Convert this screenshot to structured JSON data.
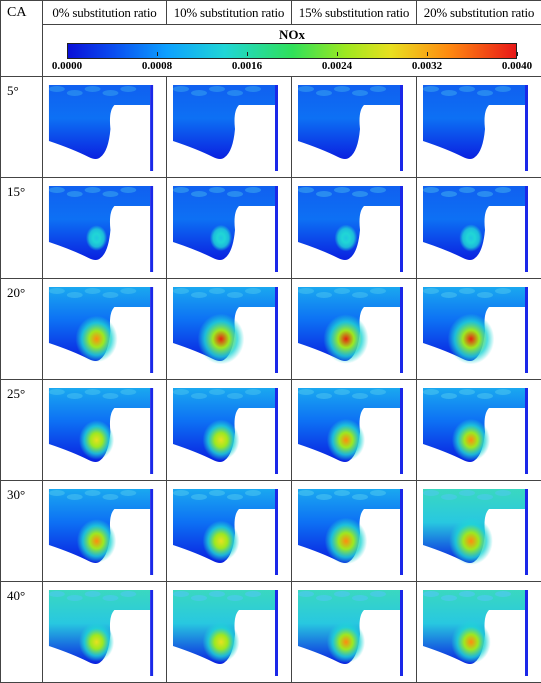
{
  "corner_label": "CA",
  "columns": [
    "0% substitution ratio",
    "10% substitution ratio",
    "15% substitution ratio",
    "20% substitution ratio"
  ],
  "legend": {
    "title": "NOx",
    "ticks": [
      "0.0000",
      "0.0008",
      "0.0016",
      "0.0024",
      "0.0032",
      "0.0040"
    ],
    "colors": [
      "#0a10d8",
      "#0da0ff",
      "#20d6d6",
      "#2fe05a",
      "#e8e020",
      "#ff8a10",
      "#e81818"
    ]
  },
  "rows": [
    {
      "ca": "5°",
      "hotspot": [
        0.0,
        0.0,
        0.0,
        0.0
      ],
      "spread": [
        0.15,
        0.18,
        0.2,
        0.22
      ]
    },
    {
      "ca": "15°",
      "hotspot": [
        0.05,
        0.08,
        0.1,
        0.12
      ],
      "spread": [
        0.25,
        0.28,
        0.3,
        0.32
      ]
    },
    {
      "ca": "20°",
      "hotspot": [
        0.8,
        0.95,
        0.9,
        0.95
      ],
      "spread": [
        0.4,
        0.45,
        0.45,
        0.5
      ]
    },
    {
      "ca": "25°",
      "hotspot": [
        0.55,
        0.6,
        0.65,
        0.65
      ],
      "spread": [
        0.45,
        0.4,
        0.5,
        0.55
      ]
    },
    {
      "ca": "30°",
      "hotspot": [
        0.7,
        0.6,
        0.8,
        0.85
      ],
      "spread": [
        0.5,
        0.55,
        0.6,
        0.65
      ]
    },
    {
      "ca": "40°",
      "hotspot": [
        0.55,
        0.6,
        0.65,
        0.7
      ],
      "spread": [
        0.7,
        0.75,
        0.8,
        0.85
      ]
    }
  ]
}
